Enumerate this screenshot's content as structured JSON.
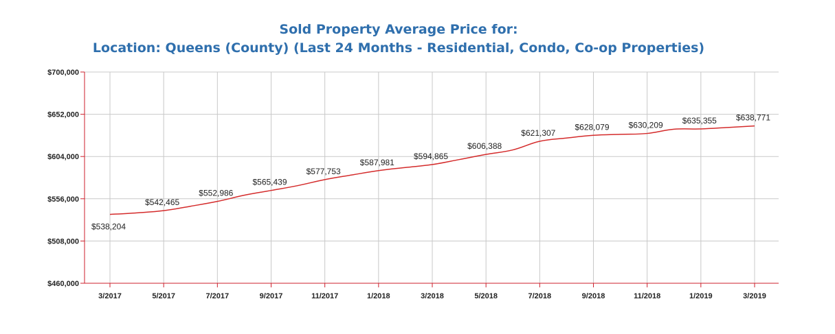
{
  "chart_data": {
    "type": "line",
    "title": "Sold Property Average Price for:",
    "subtitle": "Location: Queens (County) (Last 24 Months - Residential, Condo, Co-op Properties)",
    "xlabel": "",
    "ylabel": "",
    "ylim": [
      460000,
      700000
    ],
    "y_ticks": [
      460000,
      508000,
      556000,
      604000,
      652000,
      700000
    ],
    "y_tick_labels": [
      "$460,000",
      "$508,000",
      "$556,000",
      "$604,000",
      "$652,000",
      "$700,000"
    ],
    "x_ticks": [
      "3/2017",
      "5/2017",
      "7/2017",
      "9/2017",
      "11/2017",
      "1/2018",
      "3/2018",
      "5/2018",
      "7/2018",
      "9/2018",
      "11/2018",
      "1/2019",
      "3/2019"
    ],
    "x": [
      "3/2017",
      "4/2017",
      "5/2017",
      "6/2017",
      "7/2017",
      "8/2017",
      "9/2017",
      "10/2017",
      "11/2017",
      "12/2017",
      "1/2018",
      "2/2018",
      "3/2018",
      "4/2018",
      "5/2018",
      "6/2018",
      "7/2018",
      "8/2018",
      "9/2018",
      "10/2018",
      "11/2018",
      "12/2018",
      "1/2019",
      "2/2019",
      "3/2019"
    ],
    "series": [
      {
        "color": "#d42a2a",
        "values": [
          538204,
          540000,
          542465,
          547500,
          552986,
          560000,
          565439,
          571000,
          577753,
          583000,
          587981,
          591500,
          594865,
          600500,
          606388,
          611500,
          621307,
          625000,
          628079,
          629200,
          630209,
          635000,
          635355,
          637000,
          638771
        ]
      }
    ],
    "data_labels": [
      {
        "x": "3/2017",
        "value": 538204,
        "text": "$538,204"
      },
      {
        "x": "5/2017",
        "value": 542465,
        "text": "$542,465"
      },
      {
        "x": "7/2017",
        "value": 552986,
        "text": "$552,986"
      },
      {
        "x": "9/2017",
        "value": 565439,
        "text": "$565,439"
      },
      {
        "x": "11/2017",
        "value": 577753,
        "text": "$577,753"
      },
      {
        "x": "1/2018",
        "value": 587981,
        "text": "$587,981"
      },
      {
        "x": "3/2018",
        "value": 594865,
        "text": "$594,865"
      },
      {
        "x": "5/2018",
        "value": 606388,
        "text": "$606,388"
      },
      {
        "x": "7/2018",
        "value": 621307,
        "text": "$621,307"
      },
      {
        "x": "9/2018",
        "value": 628079,
        "text": "$628,079"
      },
      {
        "x": "11/2018",
        "value": 630209,
        "text": "$630,209"
      },
      {
        "x": "1/2019",
        "value": 635355,
        "text": "$635,355"
      },
      {
        "x": "3/2019",
        "value": 638771,
        "text": "$638,771"
      }
    ],
    "grid": true,
    "colors": {
      "title": "#2f6fad",
      "axis": "#cc1f2b",
      "line": "#d42a2a",
      "grid": "#c8c8c8"
    }
  }
}
